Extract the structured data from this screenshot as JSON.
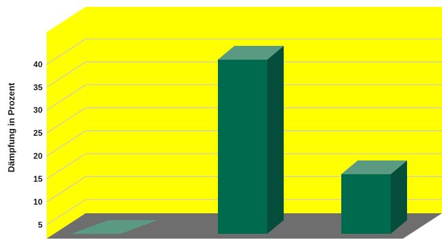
{
  "chart_data": {
    "type": "bar",
    "categories": [
      "",
      "",
      ""
    ],
    "values": [
      0,
      40,
      15
    ],
    "title": "",
    "xlabel": "",
    "ylabel": "Dämpfung in Prozent",
    "yticks": [
      5,
      10,
      15,
      20,
      25,
      30,
      35,
      40
    ],
    "ylim": [
      2,
      47
    ],
    "grid": true,
    "projection": "3d",
    "colors": {
      "wall": "#ffff00",
      "floor": "#6e6e6e",
      "gridline": "#c8c8c8",
      "bar_front": "#006a4e",
      "bar_top": "#5a9a82",
      "bar_side": "#054e3c"
    }
  }
}
